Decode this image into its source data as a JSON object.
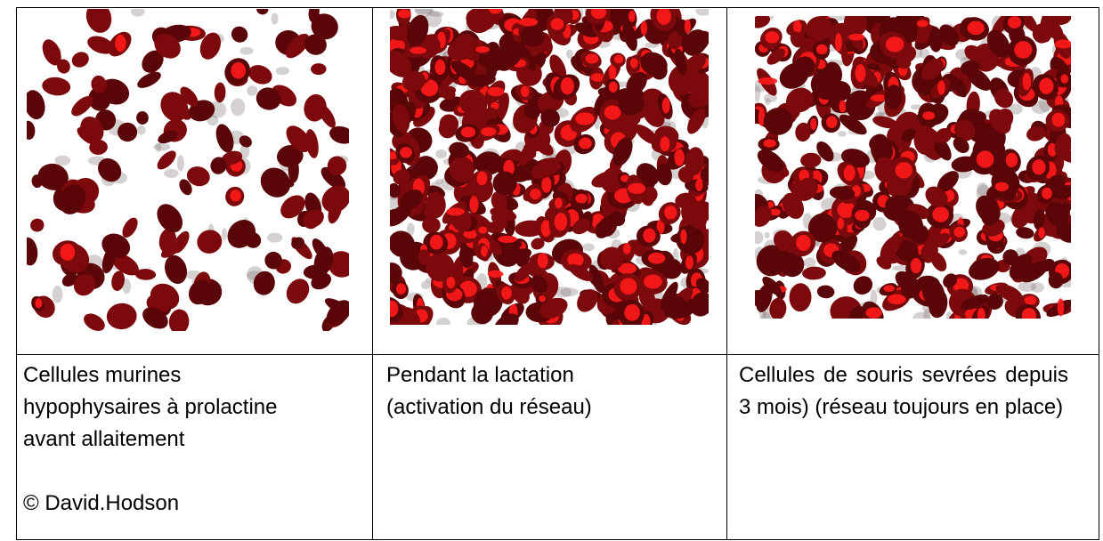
{
  "table": {
    "cells": [
      {
        "caption": "Cellules murines hypophysaires à prolactine avant allaitement",
        "credit": "© David.Hodson"
      },
      {
        "caption": "Pendant la lactation (activation du réseau)"
      },
      {
        "caption": "Cellules de souris sevrées depuis 3 mois) (réseau toujours en place)"
      }
    ]
  }
}
